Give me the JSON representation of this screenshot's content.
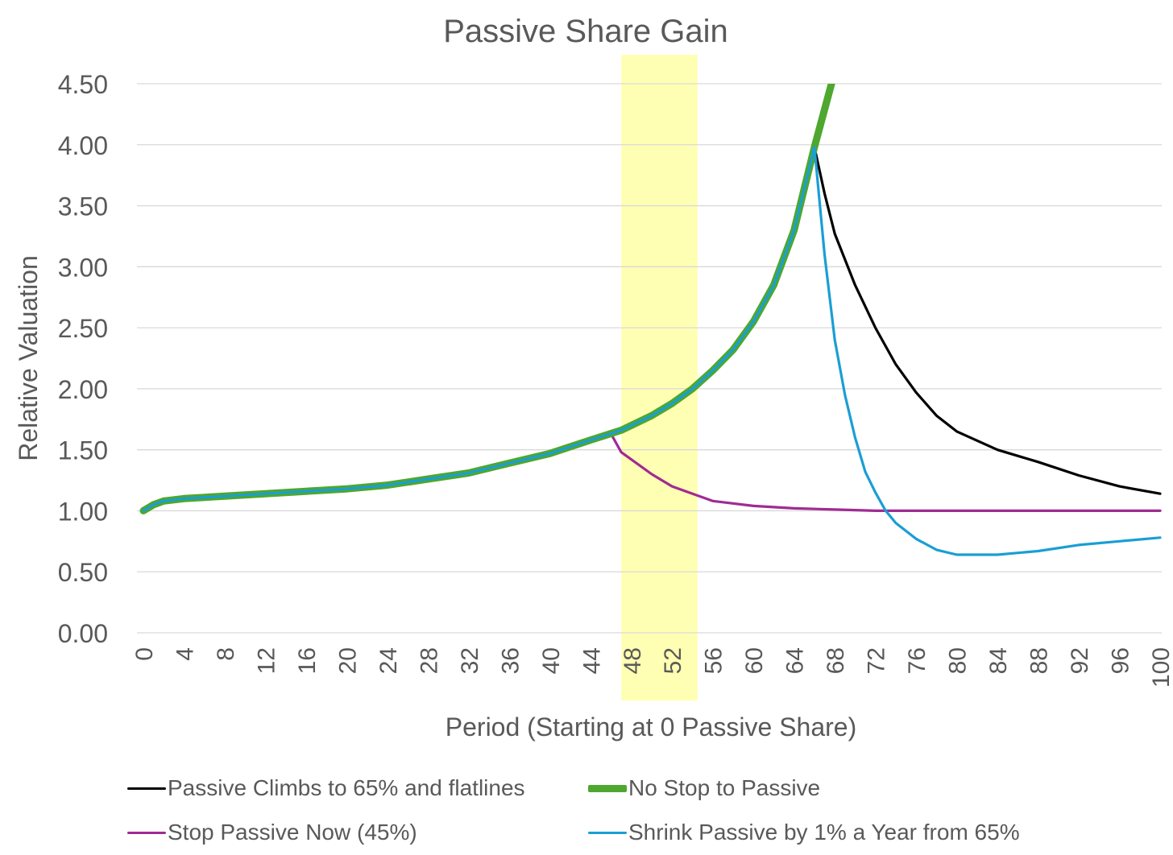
{
  "chart_data": {
    "type": "line",
    "title": "Passive Share Gain",
    "xlabel": "Period (Starting at 0 Passive Share)",
    "ylabel": "Relative Valuation",
    "xlim": [
      0,
      100
    ],
    "ylim": [
      0,
      4.5
    ],
    "x_ticks": [
      "0",
      "4",
      "8",
      "12",
      "16",
      "20",
      "24",
      "28",
      "32",
      "36",
      "40",
      "44",
      "48",
      "52",
      "56",
      "60",
      "64",
      "68",
      "72",
      "76",
      "80",
      "84",
      "88",
      "92",
      "96",
      "100"
    ],
    "y_ticks": [
      "0.00",
      "0.50",
      "1.00",
      "1.50",
      "2.00",
      "2.50",
      "3.00",
      "3.50",
      "4.00",
      "4.50"
    ],
    "highlight_band": {
      "x_start": 47,
      "x_end": 54.5,
      "color": "#ffff99"
    },
    "series": [
      {
        "name": "Passive Climbs to 65% and flatlines",
        "color": "#000000",
        "points": [
          [
            66,
            3.98
          ],
          [
            67,
            3.6
          ],
          [
            68,
            3.27
          ],
          [
            70,
            2.85
          ],
          [
            72,
            2.5
          ],
          [
            74,
            2.2
          ],
          [
            76,
            1.97
          ],
          [
            78,
            1.78
          ],
          [
            80,
            1.65
          ],
          [
            84,
            1.5
          ],
          [
            88,
            1.4
          ],
          [
            92,
            1.29
          ],
          [
            96,
            1.2
          ],
          [
            100,
            1.14
          ]
        ]
      },
      {
        "name": "No Stop to Passive",
        "color": "#4ea72e",
        "points": [
          [
            0,
            1.0
          ],
          [
            1,
            1.05
          ],
          [
            2,
            1.08
          ],
          [
            4,
            1.1
          ],
          [
            8,
            1.12
          ],
          [
            12,
            1.14
          ],
          [
            16,
            1.16
          ],
          [
            20,
            1.18
          ],
          [
            24,
            1.21
          ],
          [
            28,
            1.26
          ],
          [
            32,
            1.31
          ],
          [
            36,
            1.39
          ],
          [
            40,
            1.47
          ],
          [
            44,
            1.58
          ],
          [
            47,
            1.66
          ],
          [
            50,
            1.78
          ],
          [
            52,
            1.88
          ],
          [
            54,
            2.0
          ],
          [
            56,
            2.15
          ],
          [
            58,
            2.32
          ],
          [
            60,
            2.55
          ],
          [
            62,
            2.85
          ],
          [
            64,
            3.3
          ],
          [
            66,
            3.98
          ],
          [
            68,
            4.6
          ]
        ]
      },
      {
        "name": "Stop Passive Now (45%)",
        "color": "#a02b93",
        "points": [
          [
            46,
            1.63
          ],
          [
            47,
            1.48
          ],
          [
            48,
            1.42
          ],
          [
            50,
            1.3
          ],
          [
            52,
            1.2
          ],
          [
            54,
            1.14
          ],
          [
            56,
            1.08
          ],
          [
            60,
            1.04
          ],
          [
            64,
            1.02
          ],
          [
            68,
            1.01
          ],
          [
            72,
            1.0
          ],
          [
            80,
            1.0
          ],
          [
            90,
            1.0
          ],
          [
            100,
            1.0
          ]
        ]
      },
      {
        "name": "Shrink Passive by 1% a Year from 65%",
        "color": "#1a9ed4",
        "points": [
          [
            0,
            1.0
          ],
          [
            1,
            1.05
          ],
          [
            2,
            1.08
          ],
          [
            4,
            1.1
          ],
          [
            8,
            1.12
          ],
          [
            12,
            1.14
          ],
          [
            16,
            1.16
          ],
          [
            20,
            1.18
          ],
          [
            24,
            1.21
          ],
          [
            28,
            1.26
          ],
          [
            32,
            1.31
          ],
          [
            36,
            1.39
          ],
          [
            40,
            1.47
          ],
          [
            44,
            1.58
          ],
          [
            47,
            1.66
          ],
          [
            50,
            1.78
          ],
          [
            52,
            1.88
          ],
          [
            54,
            2.0
          ],
          [
            56,
            2.15
          ],
          [
            58,
            2.32
          ],
          [
            60,
            2.55
          ],
          [
            62,
            2.85
          ],
          [
            64,
            3.3
          ],
          [
            66,
            3.98
          ],
          [
            67,
            3.1
          ],
          [
            68,
            2.4
          ],
          [
            69,
            1.95
          ],
          [
            70,
            1.6
          ],
          [
            71,
            1.32
          ],
          [
            72,
            1.15
          ],
          [
            73,
            1.0
          ],
          [
            74,
            0.9
          ],
          [
            76,
            0.77
          ],
          [
            78,
            0.68
          ],
          [
            80,
            0.64
          ],
          [
            84,
            0.64
          ],
          [
            88,
            0.67
          ],
          [
            92,
            0.72
          ],
          [
            96,
            0.75
          ],
          [
            100,
            0.78
          ]
        ]
      }
    ],
    "legend": [
      {
        "label": "Passive Climbs to 65% and flatlines",
        "color": "#000000",
        "thick": false
      },
      {
        "label": "No Stop to Passive",
        "color": "#4ea72e",
        "thick": true
      },
      {
        "label": "Stop Passive Now (45%)",
        "color": "#a02b93",
        "thick": false
      },
      {
        "label": "Shrink Passive by 1% a Year from 65%",
        "color": "#1a9ed4",
        "thick": false
      }
    ]
  }
}
